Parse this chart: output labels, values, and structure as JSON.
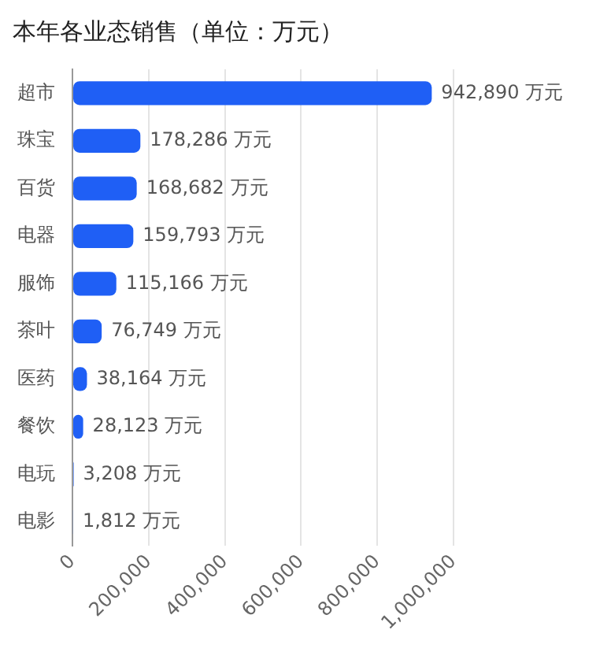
{
  "chart_data": {
    "type": "bar",
    "orientation": "horizontal",
    "title": "本年各业态销售（单位：万元）",
    "categories": [
      "超市",
      "珠宝",
      "百货",
      "电器",
      "服饰",
      "茶叶",
      "医药",
      "餐饮",
      "电玩",
      "电影"
    ],
    "series": [
      {
        "color": "#1f5ff5",
        "values": [
          942890,
          178286,
          168682,
          159793,
          115166,
          76749,
          38164,
          28123,
          3208,
          1812
        ],
        "value_labels": [
          "942,890 万元",
          "178,286 万元",
          "168,682 万元",
          "159,793 万元",
          "115,166 万元",
          "76,749 万元",
          "38,164 万元",
          "28,123 万元",
          "3,208 万元",
          "1,812 万元"
        ]
      }
    ],
    "xlim": [
      0,
      1000000
    ],
    "xticks": [
      {
        "value": 0,
        "label": "0"
      },
      {
        "value": 200000,
        "label": "200,000"
      },
      {
        "value": 400000,
        "label": "400,000"
      },
      {
        "value": 600000,
        "label": "600,000"
      },
      {
        "value": 800000,
        "label": "800,000"
      },
      {
        "value": 1000000,
        "label": "1,000,000"
      }
    ],
    "grid": "x",
    "legend": false
  }
}
